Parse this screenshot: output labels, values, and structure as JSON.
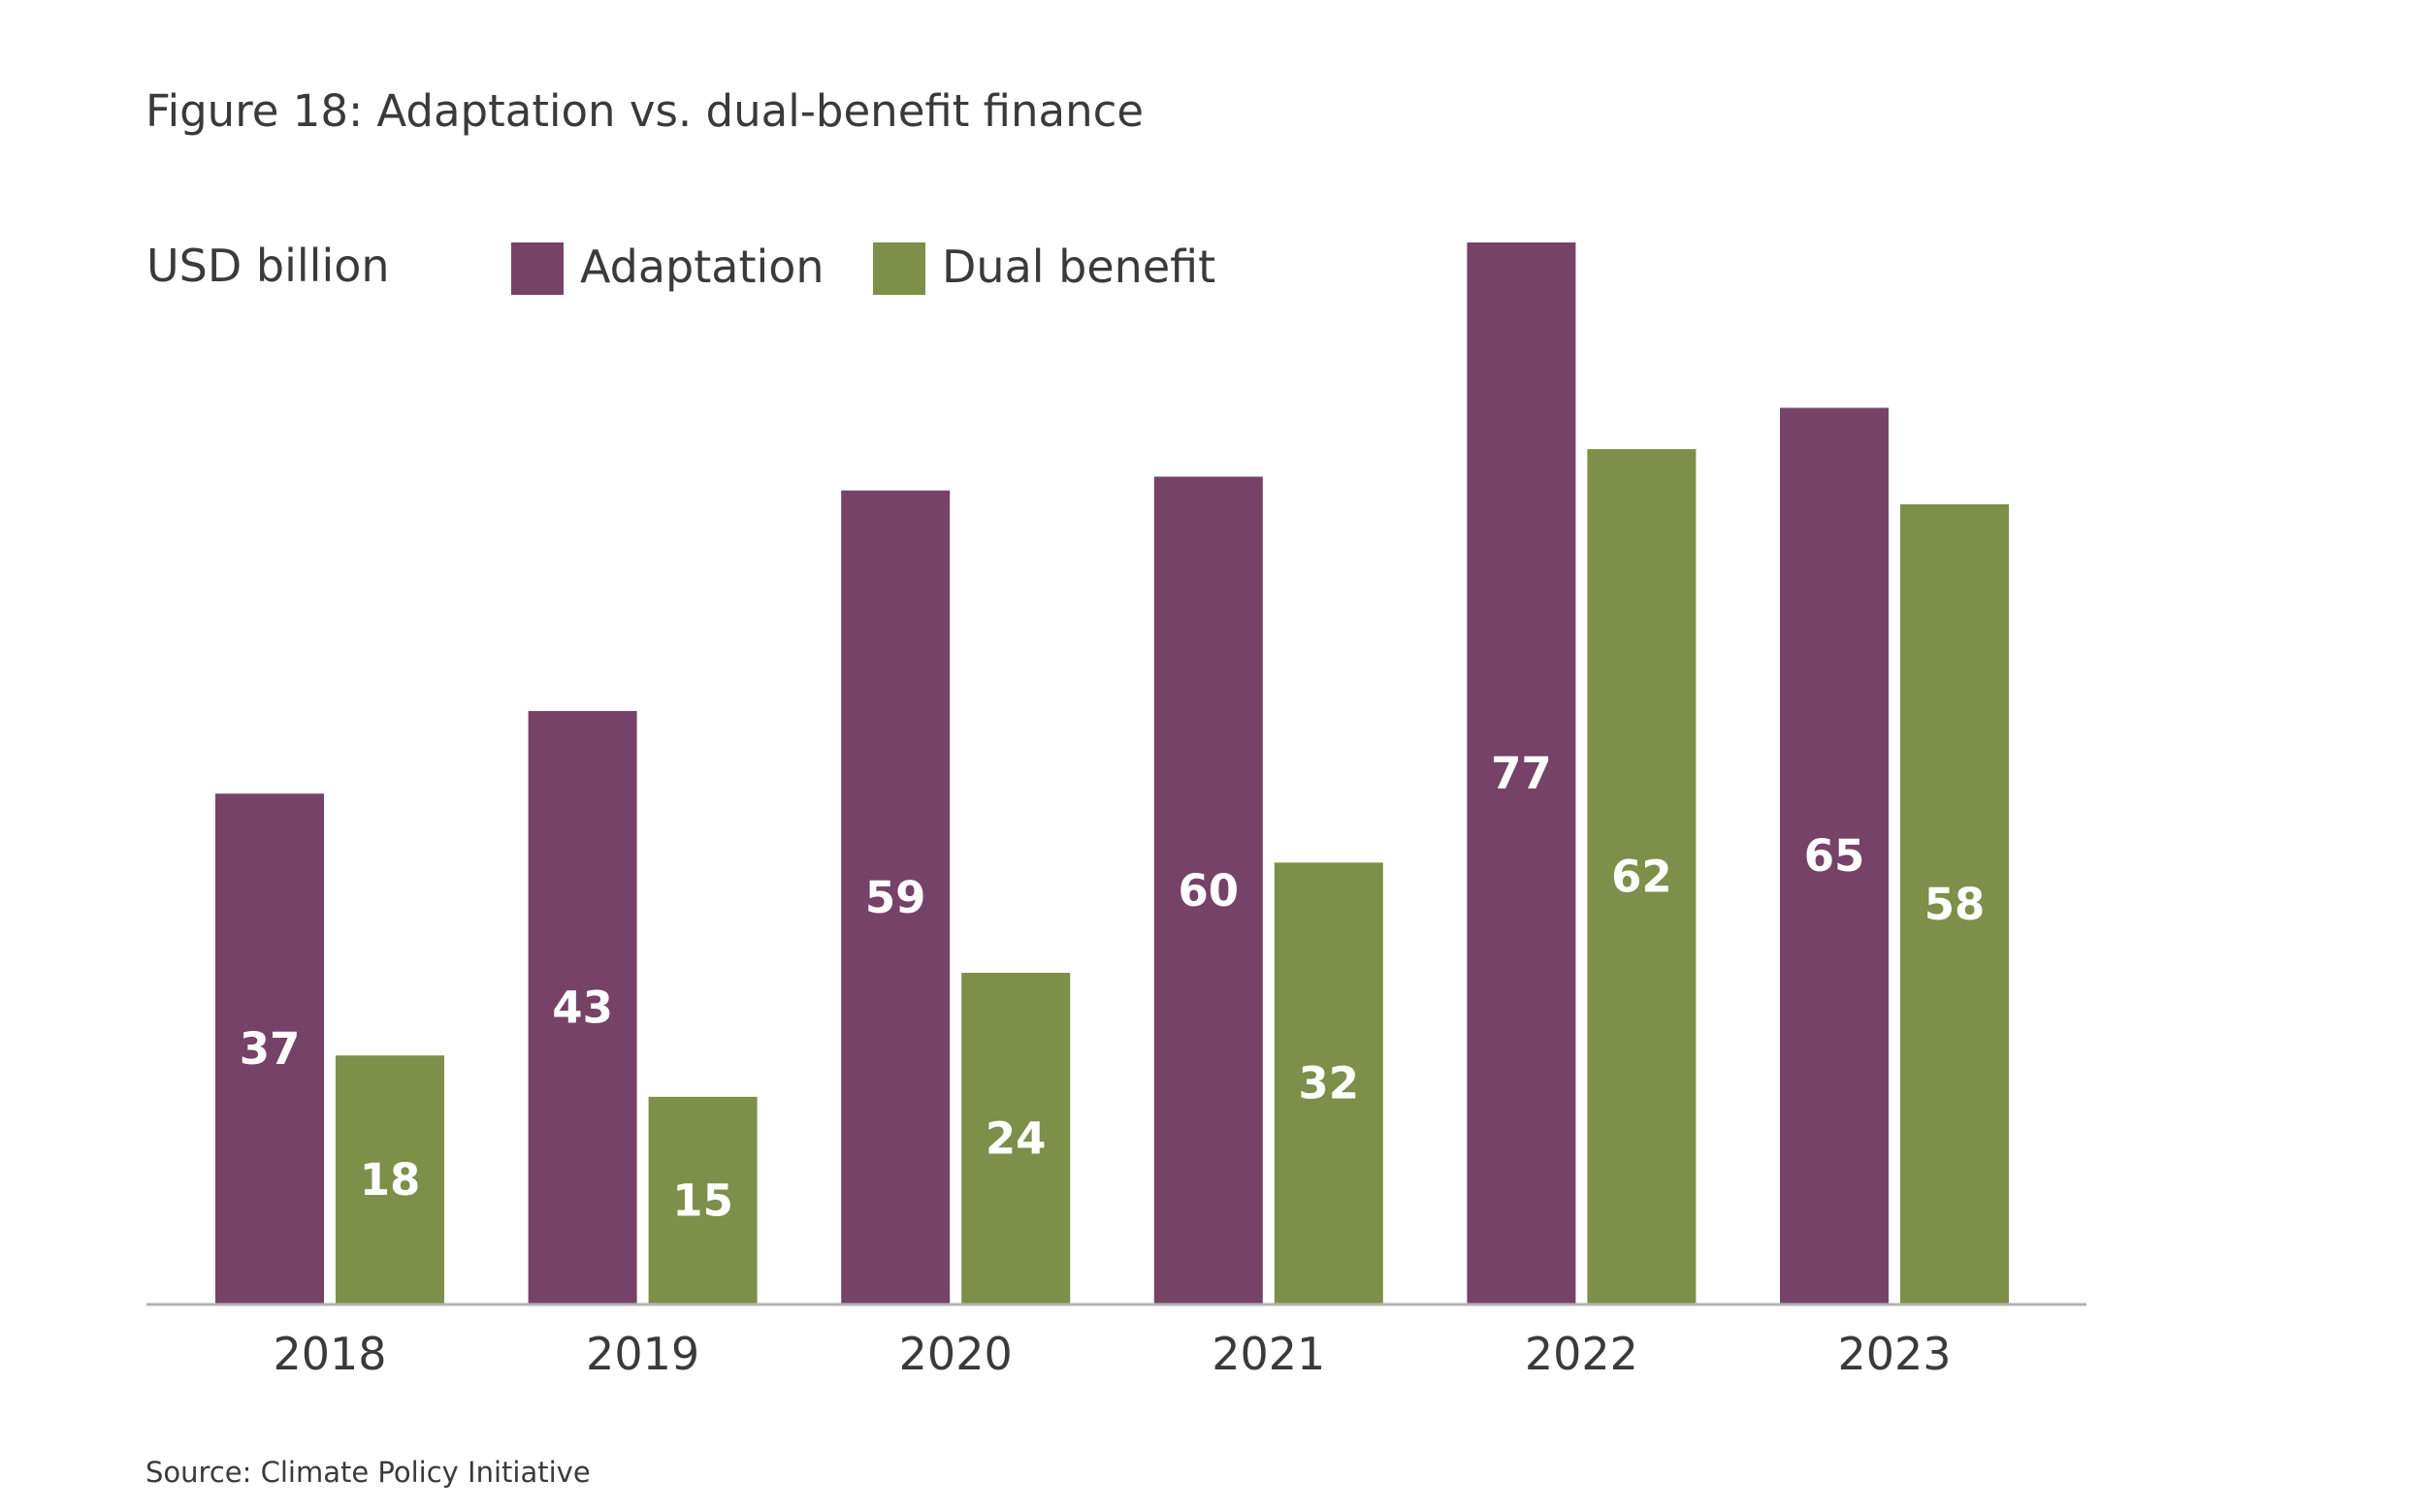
{
  "chart_data": {
    "type": "bar",
    "title": "Figure 18: Adaptation vs. dual-benefit finance",
    "unit_label": "USD billion",
    "categories": [
      "2018",
      "2019",
      "2020",
      "2021",
      "2022",
      "2023"
    ],
    "series": [
      {
        "name": "Adaptation",
        "color": "#764267",
        "values": [
          37,
          43,
          59,
          60,
          77,
          65
        ]
      },
      {
        "name": "Dual benefit",
        "color": "#7d8f48",
        "values": [
          18,
          15,
          24,
          32,
          62,
          58
        ]
      }
    ],
    "ylim": [
      0,
      77
    ],
    "grid": false,
    "legend_position": "top-left",
    "axis_color": "#b3b3b3",
    "value_label_color": "#ffffff",
    "source": "Source: Climate Policy Initiative"
  }
}
